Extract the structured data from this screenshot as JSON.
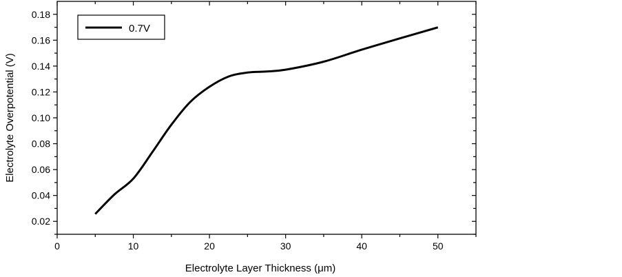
{
  "chart_data": {
    "type": "line",
    "title": "",
    "xlabel": "Electrolyte Layer Thickness (μm)",
    "ylabel": "Electrolyte Overpotential (V)",
    "xlim": [
      0,
      55
    ],
    "ylim": [
      0.01,
      0.19
    ],
    "xticks": [
      0,
      10,
      20,
      30,
      40,
      50
    ],
    "xtick_labels": [
      "0",
      "10",
      "20",
      "30",
      "40",
      "50"
    ],
    "yticks": [
      0.02,
      0.04,
      0.06,
      0.08,
      0.1,
      0.12,
      0.14,
      0.16,
      0.18
    ],
    "ytick_labels": [
      "0.02",
      "0.04",
      "0.06",
      "0.08",
      "0.10",
      "0.12",
      "0.14",
      "0.16",
      "0.18"
    ],
    "grid": false,
    "legend_position": "top-left",
    "series": [
      {
        "name": "0.7V",
        "color": "#000000",
        "x": [
          5,
          7.5,
          10,
          12.5,
          15,
          17.5,
          20,
          22.5,
          25,
          27.5,
          30,
          35,
          40,
          45,
          50
        ],
        "y": [
          0.0257,
          0.0407,
          0.053,
          0.0735,
          0.0947,
          0.1124,
          0.124,
          0.1319,
          0.135,
          0.1358,
          0.1372,
          0.1434,
          0.1527,
          0.1614,
          0.1699
        ]
      }
    ]
  }
}
